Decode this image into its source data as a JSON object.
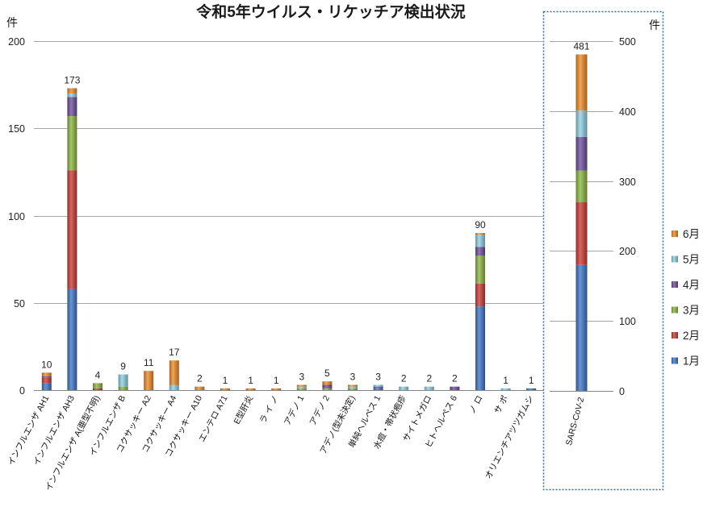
{
  "chart_data": {
    "type": "bar",
    "stacked": true,
    "title": "令和5年ウイルス・リケッチア検出状況",
    "ylabel": "件",
    "ylim": [
      0,
      200
    ],
    "yticks": [
      0,
      50,
      100,
      150,
      200
    ],
    "grid": true,
    "legend": "right",
    "categories": [
      "インフルエンザ AH1",
      "インフルエンザ AH3",
      "インフルエンザ A(亜型不明)",
      "インフルエンザ B",
      "コクサッキー A2",
      "コクサッキー A4",
      "コクサッキー A10",
      "エンテロ A71",
      "E型肝炎",
      "ラ イ ノ",
      "アデノ 1",
      "アデノ 2",
      "アデノ(型未決定)",
      "単純ヘルペス 1",
      "水痘・帯状疱疹",
      "サイトメガロ",
      "ヒトヘルペス 6",
      "ノ ロ",
      "サ ポ",
      "オリエンチアツツガムシ"
    ],
    "totals": [
      10,
      173,
      4,
      9,
      11,
      17,
      2,
      1,
      1,
      1,
      3,
      5,
      3,
      3,
      2,
      2,
      2,
      90,
      1,
      1
    ],
    "secondary": {
      "ylabel": "件",
      "ylim": [
        0,
        500
      ],
      "yticks": [
        0,
        100,
        200,
        300,
        400,
        500
      ],
      "categories": [
        "SARS-CoV-2"
      ],
      "totals": [
        481
      ]
    },
    "series": [
      {
        "name": "1月",
        "color": "#3f76c8",
        "values": [
          4,
          58,
          0,
          0,
          0,
          0,
          0,
          0,
          0,
          0,
          0,
          0,
          0,
          1,
          0,
          0,
          0,
          48,
          0,
          1
        ],
        "secondary_values": [
          180
        ]
      },
      {
        "name": "2月",
        "color": "#cc3b36",
        "values": [
          3,
          68,
          1,
          0,
          0,
          0,
          0,
          0,
          0,
          0,
          0,
          0,
          0,
          0,
          0,
          0,
          0,
          13,
          0,
          0
        ],
        "secondary_values": [
          90
        ]
      },
      {
        "name": "3月",
        "color": "#8db640",
        "values": [
          0,
          31,
          3,
          2,
          0,
          0,
          0,
          0,
          0,
          0,
          1,
          1,
          1,
          0,
          0,
          0,
          0,
          16,
          0,
          0
        ],
        "secondary_values": [
          45
        ]
      },
      {
        "name": "4月",
        "color": "#6f4f9f",
        "values": [
          1,
          11,
          0,
          0,
          0,
          0,
          0,
          0,
          0,
          0,
          0,
          2,
          0,
          1,
          0,
          0,
          2,
          5,
          0,
          0
        ],
        "secondary_values": [
          48
        ]
      },
      {
        "name": "5月",
        "color": "#8ecfe0",
        "values": [
          0,
          2,
          0,
          7,
          0,
          3,
          0,
          0,
          0,
          0,
          1,
          0,
          1,
          1,
          2,
          2,
          0,
          7,
          1,
          0
        ],
        "secondary_values": [
          38
        ]
      },
      {
        "name": "6月",
        "color": "#ee8b26",
        "values": [
          2,
          3,
          0,
          0,
          11,
          14,
          2,
          1,
          1,
          1,
          1,
          2,
          1,
          0,
          0,
          0,
          0,
          1,
          0,
          0
        ],
        "secondary_values": [
          80
        ]
      }
    ]
  }
}
